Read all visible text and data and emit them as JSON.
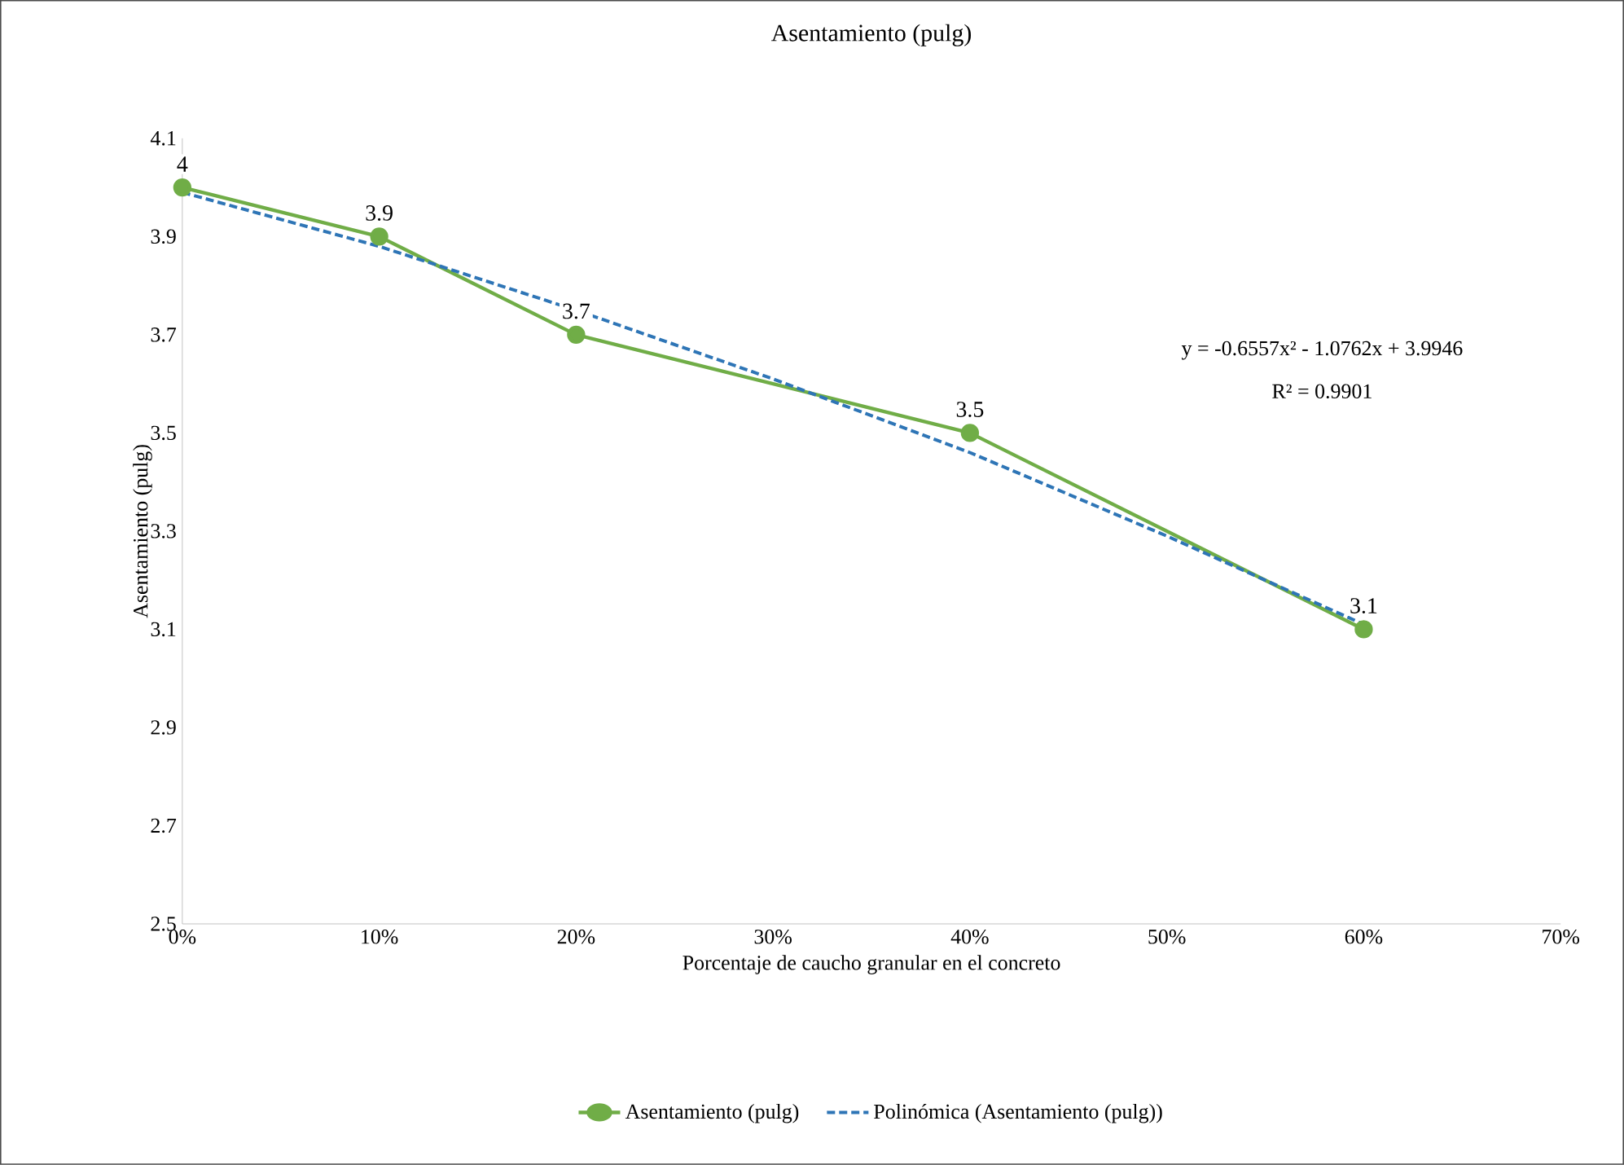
{
  "chart_data": {
    "type": "line",
    "title": "Asentamiento (pulg)",
    "xlabel": "Porcentaje de caucho granular en el concreto",
    "ylabel": "Asentamiento (pulg)",
    "series": [
      {
        "name": "Asentamiento (pulg)",
        "color": "#70ad47",
        "x": [
          0,
          10,
          20,
          40,
          60
        ],
        "values": [
          4.0,
          3.9,
          3.7,
          3.5,
          3.1
        ],
        "marker": "circle",
        "line_style": "solid",
        "value_labels": [
          "4",
          "3.9",
          "3.7",
          "3.5",
          "3.1"
        ]
      },
      {
        "name": "Polinómica (Asentamiento (pulg))",
        "type": "line",
        "color": "#2e75b6",
        "x": [
          0,
          10,
          20,
          30,
          40,
          50,
          60
        ],
        "values": [
          3.99,
          3.88,
          3.75,
          3.61,
          3.46,
          3.29,
          3.11
        ],
        "marker": "none",
        "line_style": "dashed"
      }
    ],
    "xlim": [
      0,
      70
    ],
    "xticks": [
      {
        "value": 0,
        "label": "0%"
      },
      {
        "value": 10,
        "label": "10%"
      },
      {
        "value": 20,
        "label": "20%"
      },
      {
        "value": 30,
        "label": "30%"
      },
      {
        "value": 40,
        "label": "40%"
      },
      {
        "value": 50,
        "label": "50%"
      },
      {
        "value": 60,
        "label": "60%"
      },
      {
        "value": 70,
        "label": "70%"
      }
    ],
    "ylim": [
      2.5,
      4.1
    ],
    "yticks": [
      2.5,
      2.7,
      2.9,
      3.1,
      3.3,
      3.5,
      3.7,
      3.9,
      4.1
    ],
    "annotations": [
      "y = -0.6557x² - 1.0762x + 3.9946",
      "R² = 0.9901"
    ],
    "grid": false,
    "legend": "bottom"
  }
}
